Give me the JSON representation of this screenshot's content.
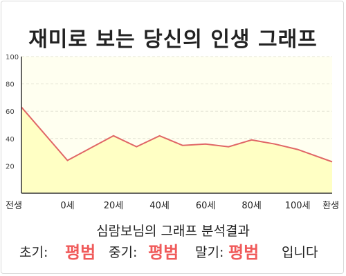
{
  "title": "재미로 보는 당신의 인생 그래프",
  "summary": "심람보님의 그래프 분석결과",
  "result": {
    "early_label": "초기:",
    "early_value": "평범",
    "mid_label": "중기:",
    "mid_value": "평범",
    "late_label": "말기:",
    "late_value": "평범",
    "suffix": "입니다"
  },
  "colors": {
    "line": "#e06666",
    "fill": "#ffffc4",
    "accent": "#f05a5a"
  },
  "chart_data": {
    "type": "area",
    "categories": [
      "전생",
      "0세",
      "20세",
      "40세",
      "60세",
      "80세",
      "100세",
      "환생"
    ],
    "x": [
      -20,
      0,
      20,
      30,
      40,
      50,
      60,
      70,
      80,
      90,
      100,
      115
    ],
    "values": [
      63,
      24,
      42,
      34,
      42,
      35,
      36,
      34,
      39,
      36,
      32,
      23
    ],
    "ylim": [
      0,
      100
    ],
    "yticks": [
      20,
      40,
      60,
      80,
      100
    ],
    "grid": true,
    "legend": "none"
  }
}
